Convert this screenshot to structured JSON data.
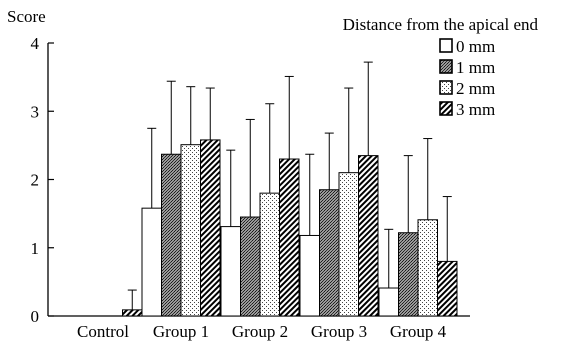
{
  "chart_data": {
    "type": "bar",
    "ylabel": "Score",
    "ylim": [
      0,
      4
    ],
    "yticks": [
      "0",
      "1",
      "2",
      "3",
      "4"
    ],
    "legend_title": "Distance from the apical end",
    "legend_placement": "top-right",
    "error_bars": "upper only",
    "categories": [
      "Control",
      "Group 1",
      "Group 2",
      "Group 3",
      "Group 4"
    ],
    "series": [
      {
        "name": "0 mm",
        "pattern": "white",
        "values": [
          0,
          1.58,
          1.31,
          1.18,
          0.41
        ],
        "errors": [
          0,
          1.17,
          1.12,
          1.19,
          0.86
        ]
      },
      {
        "name": "1 mm",
        "pattern": "dark-stipple",
        "values": [
          0,
          2.37,
          1.45,
          1.85,
          1.22
        ],
        "errors": [
          0,
          1.07,
          1.43,
          0.83,
          1.13
        ]
      },
      {
        "name": "2 mm",
        "pattern": "light-stipple",
        "values": [
          0,
          2.51,
          1.8,
          2.1,
          1.41
        ],
        "errors": [
          0,
          0.85,
          1.31,
          1.24,
          1.19
        ]
      },
      {
        "name": "3 mm",
        "pattern": "diagonal-hatch",
        "values": [
          0.09,
          2.58,
          2.3,
          2.35,
          0.8
        ],
        "errors": [
          0.29,
          0.76,
          1.21,
          1.37,
          0.95
        ]
      }
    ]
  }
}
